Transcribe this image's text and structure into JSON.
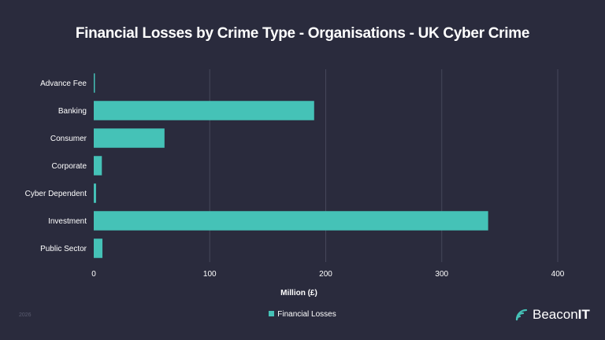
{
  "colors": {
    "background": "#2a2b3d",
    "bar": "#45c2b7",
    "grid": "#45475a",
    "text": "#ffffff"
  },
  "year": "2026",
  "brand": {
    "name_part1": "Beacon",
    "name_part2": "IT",
    "icon": "signal-waves-icon"
  },
  "chart_data": {
    "type": "bar",
    "orientation": "horizontal",
    "title": "Financial Losses by Crime Type - Organisations - UK Cyber Crime",
    "xlabel": "Million (£)",
    "ylabel": "",
    "xlim": [
      0,
      400
    ],
    "xticks": [
      0,
      100,
      200,
      300,
      400
    ],
    "grid": true,
    "legend_position": "bottom",
    "categories": [
      "Advance Fee",
      "Banking",
      "Consumer",
      "Corporate",
      "Cyber Dependent",
      "Investment",
      "Public Sector"
    ],
    "series": [
      {
        "name": "Financial Losses",
        "values": [
          1,
          190,
          61,
          7,
          2,
          340,
          7.5
        ]
      }
    ]
  }
}
